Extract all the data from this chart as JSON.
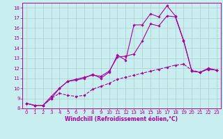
{
  "xlabel": "Windchill (Refroidissement éolien,°C)",
  "background_color": "#c8eef0",
  "grid_color": "#b0cccc",
  "line_color": "#aa00aa",
  "xlim": [
    -0.5,
    23.5
  ],
  "ylim": [
    8,
    18.5
  ],
  "yticks": [
    8,
    9,
    10,
    11,
    12,
    13,
    14,
    15,
    16,
    17,
    18
  ],
  "xticks": [
    0,
    1,
    2,
    3,
    4,
    5,
    6,
    7,
    8,
    9,
    10,
    11,
    12,
    13,
    14,
    15,
    16,
    17,
    18,
    19,
    20,
    21,
    22,
    23
  ],
  "line1_x": [
    0,
    1,
    2,
    3,
    4,
    5,
    6,
    7,
    8,
    9,
    10,
    11,
    12,
    13,
    14,
    15,
    16,
    17,
    18,
    19,
    20,
    21,
    22,
    23
  ],
  "line1_y": [
    8.5,
    8.3,
    8.3,
    9.0,
    10.0,
    10.7,
    10.8,
    11.0,
    11.4,
    11.0,
    11.6,
    13.3,
    12.8,
    16.3,
    16.3,
    17.4,
    17.1,
    18.2,
    17.2,
    14.8,
    11.7,
    11.6,
    12.0,
    11.8
  ],
  "line2_x": [
    0,
    1,
    2,
    3,
    4,
    5,
    6,
    7,
    8,
    9,
    10,
    11,
    12,
    13,
    14,
    15,
    16,
    17,
    18,
    19,
    20,
    21,
    22,
    23
  ],
  "line2_y": [
    8.5,
    8.3,
    8.3,
    9.2,
    10.0,
    10.7,
    10.9,
    11.1,
    11.3,
    11.2,
    11.7,
    13.1,
    13.2,
    13.4,
    14.7,
    16.4,
    16.2,
    17.2,
    17.1,
    14.7,
    11.7,
    11.6,
    11.9,
    11.8
  ],
  "line3_x": [
    0,
    1,
    2,
    3,
    4,
    5,
    6,
    7,
    8,
    9,
    10,
    11,
    12,
    13,
    14,
    15,
    16,
    17,
    18,
    19,
    20,
    21,
    22,
    23
  ],
  "line3_y": [
    8.5,
    8.3,
    8.3,
    9.0,
    9.5,
    9.3,
    9.2,
    9.3,
    9.9,
    10.2,
    10.5,
    10.9,
    11.1,
    11.3,
    11.5,
    11.7,
    11.9,
    12.1,
    12.3,
    12.4,
    11.8,
    11.6,
    11.9,
    11.8
  ],
  "tick_fontsize": 5.0,
  "xlabel_fontsize": 5.5
}
